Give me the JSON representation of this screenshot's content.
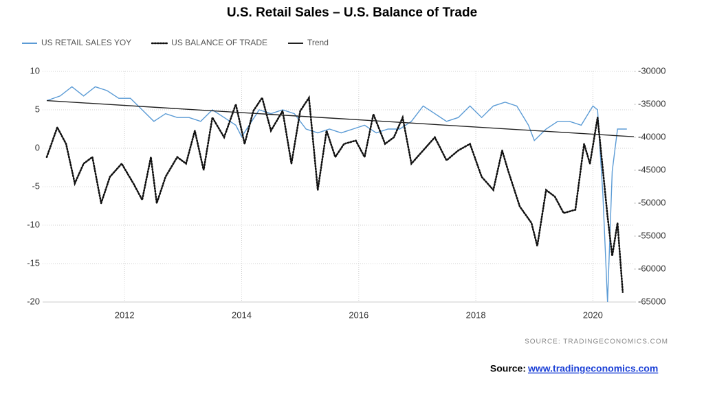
{
  "chart_data": {
    "type": "line",
    "title": "U.S. Retail Sales – U.S. Balance of Trade",
    "source_note": "SOURCE:  TRADINGECONOMICS.COM",
    "source_label": "Source:",
    "source_link": "www.tradingeconomics.com",
    "xlim": [
      2010.6,
      2020.7
    ],
    "xticks": [
      2012,
      2014,
      2016,
      2018,
      2020
    ],
    "ylim": [
      -20,
      10
    ],
    "yticks": [
      10,
      5,
      0,
      -5,
      -10,
      -15,
      -20
    ],
    "y2lim": [
      -65000,
      -30000
    ],
    "y2ticks": [
      -30000,
      -35000,
      -40000,
      -45000,
      -50000,
      -55000,
      -60000,
      -65000
    ],
    "grid": true,
    "legend": "top-left",
    "series": [
      {
        "name": "US RETAIL SALES YOY",
        "color": "#5b9bd5",
        "dash": "solid",
        "x": [
          2010.67,
          2010.9,
          2011.1,
          2011.3,
          2011.5,
          2011.7,
          2011.9,
          2012.1,
          2012.3,
          2012.5,
          2012.7,
          2012.9,
          2013.1,
          2013.3,
          2013.5,
          2013.7,
          2013.9,
          2014.0,
          2014.3,
          2014.5,
          2014.7,
          2014.9,
          2015.1,
          2015.3,
          2015.5,
          2015.7,
          2015.9,
          2016.1,
          2016.3,
          2016.5,
          2016.7,
          2016.9,
          2017.1,
          2017.3,
          2017.5,
          2017.7,
          2017.9,
          2018.1,
          2018.3,
          2018.5,
          2018.7,
          2018.9,
          2019.0,
          2019.2,
          2019.4,
          2019.6,
          2019.8,
          2020.0,
          2020.08,
          2020.17,
          2020.25,
          2020.33,
          2020.42,
          2020.58
        ],
        "values": [
          6.2,
          6.8,
          8.0,
          6.8,
          8.0,
          7.5,
          6.5,
          6.5,
          5.0,
          3.5,
          4.5,
          4.0,
          4.0,
          3.5,
          5.0,
          4.0,
          3.0,
          1.5,
          5.0,
          4.5,
          5.0,
          4.5,
          2.5,
          2.0,
          2.5,
          2.0,
          2.5,
          3.0,
          2.0,
          2.5,
          2.5,
          3.5,
          5.5,
          4.5,
          3.5,
          4.0,
          5.5,
          4.0,
          5.5,
          6.0,
          5.5,
          3.0,
          1.0,
          2.5,
          3.5,
          3.5,
          3.0,
          5.5,
          5.0,
          -6,
          -20,
          -3,
          2.5,
          2.5
        ]
      },
      {
        "name": "US BALANCE OF TRADE",
        "color": "#111111",
        "dash": "dotted",
        "axis": "y2",
        "x": [
          2010.67,
          2010.85,
          2011.0,
          2011.15,
          2011.3,
          2011.45,
          2011.6,
          2011.75,
          2011.95,
          2012.15,
          2012.3,
          2012.45,
          2012.55,
          2012.7,
          2012.9,
          2013.05,
          2013.2,
          2013.35,
          2013.5,
          2013.7,
          2013.9,
          2014.05,
          2014.2,
          2014.35,
          2014.5,
          2014.7,
          2014.85,
          2015.0,
          2015.15,
          2015.3,
          2015.45,
          2015.6,
          2015.75,
          2015.95,
          2016.1,
          2016.25,
          2016.45,
          2016.6,
          2016.75,
          2016.9,
          2017.1,
          2017.3,
          2017.5,
          2017.7,
          2017.9,
          2018.1,
          2018.3,
          2018.45,
          2018.55,
          2018.75,
          2018.95,
          2019.05,
          2019.2,
          2019.35,
          2019.5,
          2019.7,
          2019.85,
          2019.95,
          2020.08,
          2020.25,
          2020.33,
          2020.42,
          2020.51
        ],
        "values": [
          -43000,
          -38500,
          -41000,
          -47000,
          -44000,
          -43000,
          -50000,
          -46000,
          -44000,
          -47000,
          -49500,
          -43000,
          -50000,
          -46000,
          -43000,
          -44000,
          -39000,
          -45000,
          -37000,
          -40000,
          -35000,
          -41000,
          -36000,
          -34000,
          -39000,
          -36000,
          -44000,
          -36000,
          -34000,
          -48000,
          -39000,
          -43000,
          -41000,
          -40500,
          -43000,
          -36500,
          -41000,
          -40000,
          -37000,
          -44000,
          -42000,
          -40000,
          -43500,
          -42000,
          -41000,
          -46000,
          -48000,
          -42000,
          -45000,
          -50500,
          -53000,
          -56500,
          -48000,
          -49000,
          -51500,
          -51000,
          -41000,
          -44000,
          -37000,
          -52000,
          -58000,
          -53000,
          -63500
        ]
      },
      {
        "name": "Trend",
        "color": "#222222",
        "dash": "solid",
        "x": [
          2010.67,
          2020.7
        ],
        "values": [
          6.2,
          1.5
        ]
      }
    ]
  }
}
